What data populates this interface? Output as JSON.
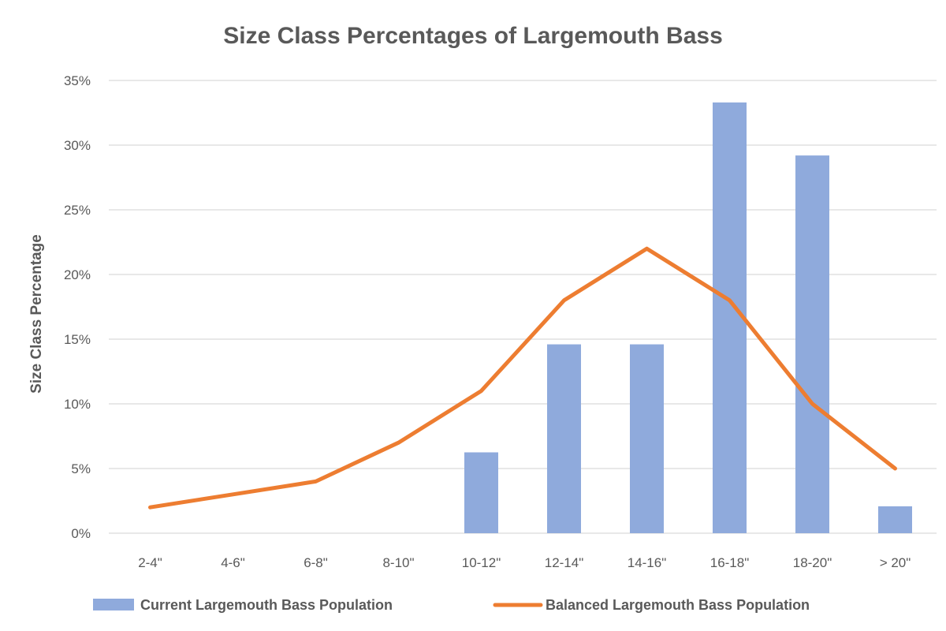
{
  "chart_data": {
    "type": "bar",
    "title": "Size Class Percentages of Largemouth Bass",
    "xlabel": "",
    "ylabel": "Size Class Percentage",
    "categories": [
      "2-4\"",
      "4-6\"",
      "6-8\"",
      "8-10\"",
      "10-12\"",
      "12-14\"",
      "14-16\"",
      "16-18\"",
      "18-20\"",
      "> 20\""
    ],
    "ylim": [
      0,
      35
    ],
    "yticks": [
      "0%",
      "5%",
      "10%",
      "15%",
      "20%",
      "25%",
      "30%",
      "35%"
    ],
    "grid": true,
    "legend_position": "bottom",
    "series": [
      {
        "name": "Current Largemouth Bass Population",
        "type": "bar",
        "color": "#8faadc",
        "values": [
          0,
          0,
          0,
          0,
          6.25,
          14.6,
          14.6,
          33.3,
          29.2,
          2.08
        ]
      },
      {
        "name": "Balanced Largemouth Bass Population",
        "type": "line",
        "color": "#ed7d31",
        "values": [
          2,
          3,
          4,
          7,
          11,
          18,
          22,
          18,
          10,
          5
        ]
      }
    ]
  }
}
